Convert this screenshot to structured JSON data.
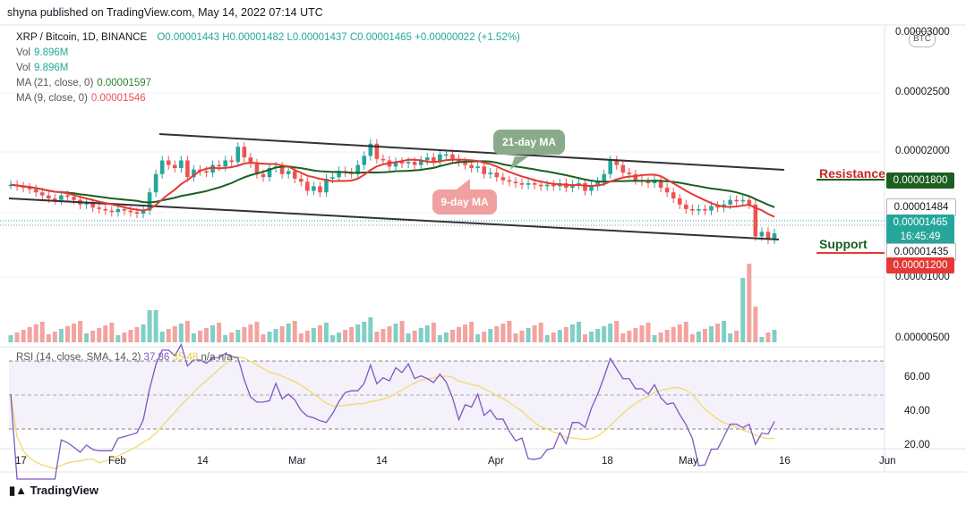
{
  "header": {
    "text": "shyna published on TradingView.com, May 14, 2022 07:14 UTC"
  },
  "legend": {
    "pair": "XRP / Bitcoin, 1D, BINANCE",
    "ohlc": "O0.00001443  H0.00001482  L0.00001437  C0.00001465  +0.00000022  (+1.52%)",
    "vol1_label": "Vol",
    "vol1_value": "9.896M",
    "vol2_label": "Vol",
    "vol2_value": "9.896M",
    "ma21_label": "MA (21, close, 0)",
    "ma21_value": "0.00001597",
    "ma9_label": "MA (9, close, 0)",
    "ma9_value": "0.00001546"
  },
  "rsi_legend": {
    "label": "RSI (14, close, SMA, 14, 2)",
    "rsi": "37.86",
    "sma": "35.48",
    "extra": "n/a  n/a"
  },
  "currency_badge": "BTC",
  "annotations": {
    "ma21_tag": "21-day MA",
    "ma9_tag": "9-day MA",
    "resistance": "Resistance",
    "support": "Support"
  },
  "price_axis": [
    "0.00003000",
    "0.00002500",
    "0.00002000",
    "0.00001000",
    "0.00000500"
  ],
  "price_tags": [
    {
      "text": "0.00001800",
      "color": "#1b5e20"
    },
    {
      "text": "0.00001484",
      "color": "#ffffff",
      "fg": "#131722"
    },
    {
      "text": "0.00001465",
      "color": "#26a69a"
    },
    {
      "text": "16:45:49",
      "color": "#26a69a"
    },
    {
      "text": "0.00001435",
      "color": "#ffffff",
      "fg": "#131722"
    },
    {
      "text": "0.00001200",
      "color": "#e53935"
    }
  ],
  "rsi_axis": [
    "60.00",
    "40.00",
    "20.00"
  ],
  "date_axis": [
    "17",
    "Feb",
    "14",
    "Mar",
    "14",
    "Apr",
    "18",
    "May",
    "16",
    "Jun"
  ],
  "footer": "TradingView",
  "colors": {
    "up": "#26a69a",
    "down": "#ef5350",
    "ma21": "#1b5e20",
    "ma9": "#e53935",
    "rsi": "#7e57c2",
    "rsi_sma": "#f5d76e"
  },
  "chart_data": {
    "type": "candlestick",
    "title": "XRP / Bitcoin, 1D, BINANCE",
    "ylim": [
      5e-06,
      3e-05
    ],
    "close_series_approx": [
      1.79,
      1.78,
      1.77,
      1.76,
      1.74,
      1.72,
      1.7,
      1.69,
      1.72,
      1.71,
      1.69,
      1.66,
      1.67,
      1.64,
      1.63,
      1.62,
      1.61,
      1.63,
      1.62,
      1.61,
      1.6,
      1.62,
      1.74,
      1.86,
      1.95,
      1.92,
      1.9,
      1.95,
      1.84,
      1.89,
      1.88,
      1.87,
      1.92,
      1.91,
      1.95,
      1.94,
      2.04,
      1.97,
      1.93,
      1.86,
      1.84,
      1.9,
      1.91,
      1.86,
      1.88,
      1.83,
      1.81,
      1.75,
      1.78,
      1.74,
      1.83,
      1.84,
      1.88,
      1.87,
      1.86,
      1.92,
      1.98,
      2.06,
      1.96,
      1.95,
      1.91,
      1.94,
      1.93,
      1.94,
      1.92,
      1.95,
      1.97,
      1.94,
      1.99,
      1.99,
      1.96,
      1.94,
      1.92,
      1.9,
      1.91,
      1.86,
      1.87,
      1.84,
      1.82,
      1.81,
      1.8,
      1.79,
      1.8,
      1.79,
      1.78,
      1.79,
      1.78,
      1.8,
      1.77,
      1.79,
      1.8,
      1.75,
      1.78,
      1.81,
      1.86,
      1.95,
      1.92,
      1.87,
      1.86,
      1.82,
      1.81,
      1.8,
      1.82,
      1.77,
      1.74,
      1.7,
      1.66,
      1.63,
      1.62,
      1.63,
      1.62,
      1.65,
      1.64,
      1.66,
      1.69,
      1.68,
      1.69,
      1.66,
      1.45,
      1.48,
      1.43,
      1.47
    ],
    "ma21_line_approx": "green moving average",
    "ma9_line_approx": "red moving average",
    "resistance_level": 1.8e-05,
    "support_level": 1.2e-05,
    "rsi_levels": [
      30,
      50,
      70
    ]
  }
}
